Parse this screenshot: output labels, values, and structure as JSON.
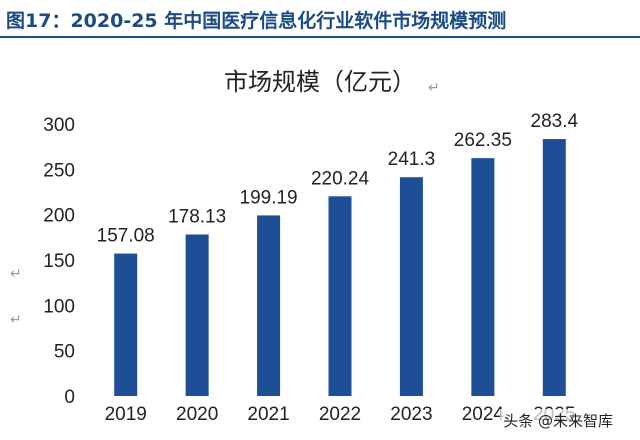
{
  "figure": {
    "title": "图17：2020-25 年中国医疗信息化行业软件市场规模预测"
  },
  "watermark": "头条 @未来智库",
  "colors": {
    "bar": "#1e4f96",
    "title": "#1a4b86"
  },
  "chart_data": {
    "type": "bar",
    "title": "市场规模（亿元）",
    "categories": [
      "2019",
      "2020",
      "2021",
      "2022",
      "2023",
      "2024",
      "2025"
    ],
    "values": [
      157.08,
      178.13,
      199.19,
      220.24,
      241.3,
      262.35,
      283.4
    ],
    "data_labels": [
      "157.08",
      "178.13",
      "199.19",
      "220.24",
      "241.3",
      "262.35",
      "283.4"
    ],
    "y_ticks": [
      0,
      50,
      100,
      150,
      200,
      250,
      300
    ],
    "ylim": [
      0,
      300
    ],
    "grid": false,
    "legend": "none"
  }
}
